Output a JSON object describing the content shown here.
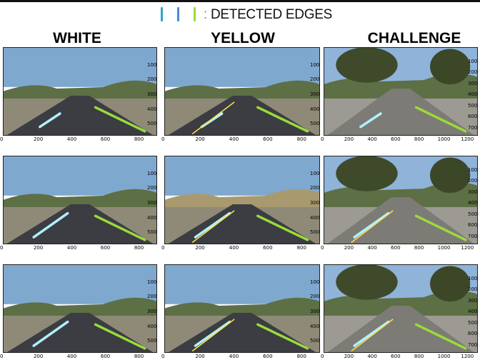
{
  "legend": {
    "colors": [
      "#2aa6c8",
      "#4a8ad8",
      "#9adb3a"
    ],
    "separator": ":",
    "label": " DETECTED EDGES"
  },
  "columns": [
    "WHITE",
    "YELLOW",
    "CHALLENGE"
  ],
  "xticks": {
    "standard": [
      "0",
      "200",
      "400",
      "600",
      "800"
    ],
    "challenge": [
      "0",
      "200",
      "400",
      "600",
      "800",
      "1000",
      "1200"
    ]
  },
  "yticks": {
    "standard": [
      "0",
      "100",
      "200",
      "300",
      "400",
      "500"
    ],
    "challenge": [
      "0",
      "100",
      "200",
      "300",
      "400",
      "500",
      "600",
      "700"
    ]
  }
}
